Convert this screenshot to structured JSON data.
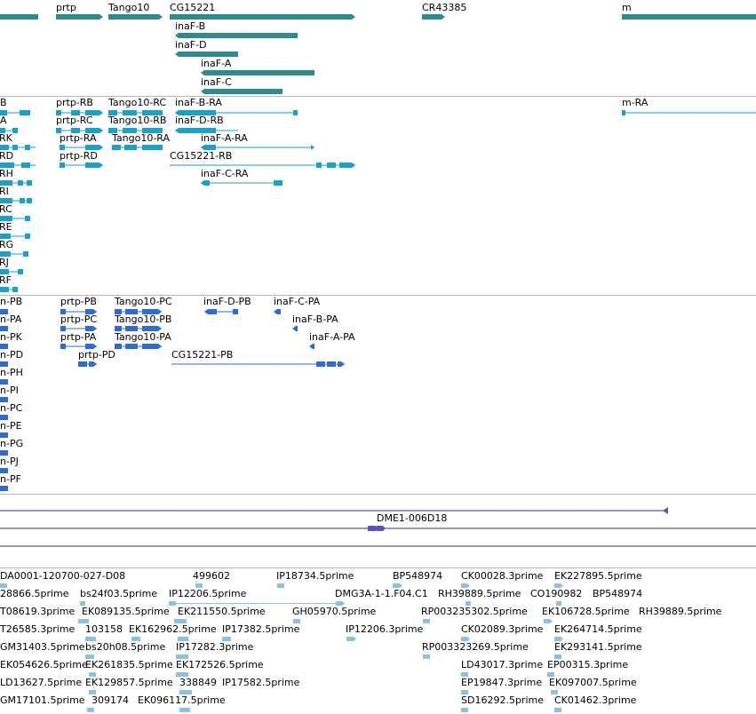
{
  "colors": {
    "gene": "#2e8b8b",
    "transcript": "#1ba0c8",
    "protein": "#2e6bd3",
    "contig": "#6a4bb5",
    "contig_line": "#3a2d7a",
    "est": "#89c0e4",
    "separator": "#b7b7b7"
  },
  "genes": [
    {
      "label": "prtp"
    },
    {
      "label": "Tango10"
    },
    {
      "label": "CG15221"
    },
    {
      "label": "CR43385"
    },
    {
      "label": "m"
    },
    {
      "label": "inaF-B"
    },
    {
      "label": "inaF-D"
    },
    {
      "label": "inaF-A"
    },
    {
      "label": "inaF-C"
    }
  ],
  "transcripts": [
    {
      "label": "B"
    },
    {
      "label": "prtp-RB"
    },
    {
      "label": "Tango10-RC"
    },
    {
      "label": "inaF-B-RA"
    },
    {
      "label": "m-RA"
    },
    {
      "label": "A"
    },
    {
      "label": "prtp-RC"
    },
    {
      "label": "Tango10-RB"
    },
    {
      "label": "inaF-D-RB"
    },
    {
      "label": "-RK"
    },
    {
      "label": "prtp-RA"
    },
    {
      "label": "Tango10-RA"
    },
    {
      "label": "inaF-A-RA"
    },
    {
      "label": "-RD"
    },
    {
      "label": "prtp-RD"
    },
    {
      "label": "CG15221-RB"
    },
    {
      "label": "-RH"
    },
    {
      "label": "inaF-C-RA"
    },
    {
      "label": "-RI"
    },
    {
      "label": "-RC"
    },
    {
      "label": "-RE"
    },
    {
      "label": "-RG"
    },
    {
      "label": "-RJ"
    },
    {
      "label": "-RF"
    }
  ],
  "proteins": [
    {
      "label": "n-PB"
    },
    {
      "label": "prtp-PB"
    },
    {
      "label": "Tango10-PC"
    },
    {
      "label": "inaF-D-PB"
    },
    {
      "label": "inaF-C-PA"
    },
    {
      "label": "n-PA"
    },
    {
      "label": "prtp-PC"
    },
    {
      "label": "Tango10-PB"
    },
    {
      "label": "inaF-B-PA"
    },
    {
      "label": "n-PK"
    },
    {
      "label": "prtp-PA"
    },
    {
      "label": "Tango10-PA"
    },
    {
      "label": "inaF-A-PA"
    },
    {
      "label": "n-PD"
    },
    {
      "label": "prtp-PD"
    },
    {
      "label": "CG15221-PB"
    },
    {
      "label": "n-PH"
    },
    {
      "label": "n-PI"
    },
    {
      "label": "n-PC"
    },
    {
      "label": "n-PE"
    },
    {
      "label": "n-PG"
    },
    {
      "label": "n-PJ"
    },
    {
      "label": "n-PF"
    }
  ],
  "contig": {
    "label": "DME1-006D18"
  },
  "ests": [
    {
      "label": "DA0001-120700-027-D08"
    },
    {
      "label": "499602"
    },
    {
      "label": "IP18734.5prime"
    },
    {
      "label": "BP548974"
    },
    {
      "label": "CK00028.3prime"
    },
    {
      "label": "EK227895.5prime"
    },
    {
      "label": "28866.5prime"
    },
    {
      "label": "bs24f03.5prime"
    },
    {
      "label": "IP12206.5prime"
    },
    {
      "label": "DMG3A-1-1.F04.C1"
    },
    {
      "label": "RH39889.5prime"
    },
    {
      "label": "CO190982"
    },
    {
      "label": "BP548974"
    },
    {
      "label": "T08619.3prime"
    },
    {
      "label": "EK089135.5prime"
    },
    {
      "label": "EK211550.5prime"
    },
    {
      "label": "GH05970.5prime"
    },
    {
      "label": "RP003235302.5prime"
    },
    {
      "label": "EK106728.5prime"
    },
    {
      "label": "RH39889.5prime"
    },
    {
      "label": "T26585.3prime"
    },
    {
      "label": "103158"
    },
    {
      "label": "EK162962.5prime"
    },
    {
      "label": "IP17382.5prime"
    },
    {
      "label": "IP12206.3prime"
    },
    {
      "label": "CK02089.3prime"
    },
    {
      "label": "EK264714.5prime"
    },
    {
      "label": "GM31403.5prime"
    },
    {
      "label": "bs20h08.5prime"
    },
    {
      "label": "IP17282.3prime"
    },
    {
      "label": "RP003323269.5prime"
    },
    {
      "label": "EK293141.5prime"
    },
    {
      "label": "EK054626.5prime"
    },
    {
      "label": "EK261835.5prime"
    },
    {
      "label": "EK172526.5prime"
    },
    {
      "label": "LD43017.3prime"
    },
    {
      "label": "EP00315.3prime"
    },
    {
      "label": "LD13627.5prime"
    },
    {
      "label": "EK129857.5prime"
    },
    {
      "label": "338849"
    },
    {
      "label": "IP17582.5prime"
    },
    {
      "label": "EP19847.3prime"
    },
    {
      "label": "EK097007.5prime"
    },
    {
      "label": "GM17101.5prime"
    },
    {
      "label": "309174"
    },
    {
      "label": "EK096117.5prime"
    },
    {
      "label": "SD16292.5prime"
    },
    {
      "label": "CK01462.3prime"
    }
  ]
}
